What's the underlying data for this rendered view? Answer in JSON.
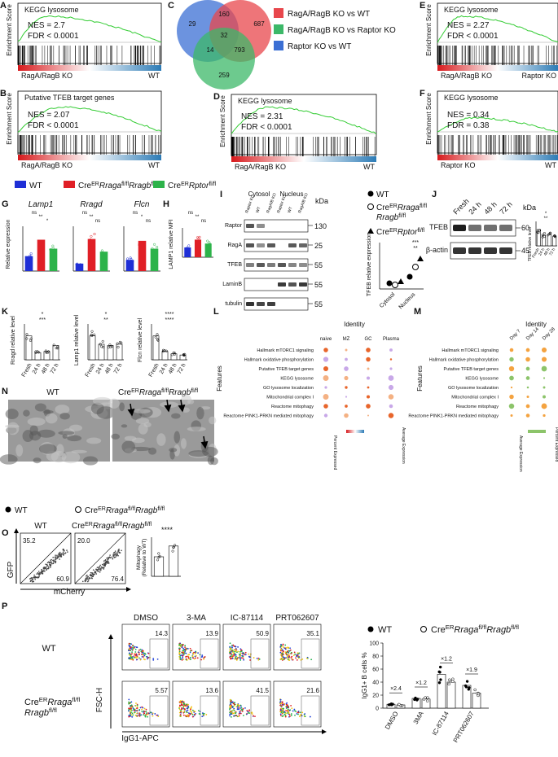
{
  "panels": {
    "A": {
      "letter": "A",
      "title": "KEGG lysosome",
      "y_label": "Enrichment Score",
      "nes": "NES = 2.7",
      "fdr": "FDR < 0.0001",
      "left": "RagA/RagB KO",
      "right": "WT"
    },
    "B": {
      "letter": "B",
      "title": "Putative TFEB target genes",
      "y_label": "Enrichment Score",
      "nes": "NES = 2.07",
      "fdr": "FDR < 0.0001",
      "left": "RagA/RagB KO",
      "right": "WT"
    },
    "C": {
      "letter": "C",
      "venn": [
        "29",
        "160",
        "687",
        "32",
        "14",
        "793",
        "259"
      ],
      "legend": [
        "RagA/RagB KO vs WT",
        "RagA/RagB KO vs Raptor KO",
        "Raptor KO vs WT"
      ]
    },
    "D": {
      "letter": "D",
      "title": "KEGG lysosome",
      "y_label": "Enrichment Score",
      "nes": "NES = 2.31",
      "fdr": "FDR < 0.0001",
      "left": "RagA/RagB KO",
      "right": "WT"
    },
    "E": {
      "letter": "E",
      "title": "KEGG lysosome",
      "y_label": "Enrichment Score",
      "nes": "NES = 2.27",
      "fdr": "FDR < 0.0001",
      "left": "RagA/RagB KO",
      "right": "Raptor KO"
    },
    "F": {
      "letter": "F",
      "title": "KEGG lysosome",
      "y_label": "Enrichment Score",
      "nes": "NES = 0.34",
      "fdr": "FDR = 0.38",
      "left": "Raptor KO",
      "right": "WT"
    },
    "genotypes": {
      "wt": "WT",
      "raga": [
        "Cre",
        "ER",
        "Rraga",
        "fl/fl",
        "Rragb",
        "fl/fl"
      ],
      "raptor": [
        "Cre",
        "ER",
        "Rptor",
        "fl/fl"
      ]
    },
    "G": {
      "letter": "G",
      "y_label": "Relative expression",
      "charts": [
        {
          "gene": "Lamp1",
          "values": [
            1,
            2.1,
            1.5
          ],
          "ylim": [
            0,
            3
          ],
          "sig": [
            "ns",
            "**",
            "*"
          ]
        },
        {
          "gene": "Rragd",
          "values": [
            1,
            4.3,
            2.6
          ],
          "ylim": [
            0,
            6
          ],
          "sig": [
            "ns",
            "**",
            "ns"
          ]
        },
        {
          "gene": "Flcn",
          "values": [
            1,
            2.7,
            2.0
          ],
          "ylim": [
            0,
            4
          ],
          "sig": [
            "ns",
            "*",
            "ns"
          ]
        }
      ]
    },
    "H": {
      "letter": "H",
      "y_label": "LAMP1 relative MFI",
      "values": [
        1,
        1.8,
        1.4
      ],
      "ylim": [
        0,
        3
      ],
      "sig": [
        "ns",
        "**",
        "ns"
      ]
    },
    "I": {
      "letter": "I",
      "fractions": [
        "Cytosol",
        "Nucleus"
      ],
      "lanes": [
        "Raptor KO",
        "WT",
        "RagA/B KO",
        "Raptor KO",
        "WT",
        "RagA/B KO"
      ],
      "proteins": [
        "Raptor",
        "RagA",
        "TFEB",
        "LaminB",
        "tubulin"
      ],
      "kda_label": "kDa",
      "kda": [
        "130",
        "25",
        "55",
        "55",
        "55"
      ],
      "quant": {
        "y_label": "TFEB relative expression",
        "x": [
          "Cytosol",
          "Nucleus"
        ],
        "sig": [
          "***",
          "**"
        ]
      }
    },
    "J": {
      "letter": "J",
      "times": [
        "Fresh",
        "24 h",
        "48 h",
        "72 h"
      ],
      "proteins": [
        "TFEB",
        "β-actin"
      ],
      "kda_label": "kDa",
      "kda": [
        "60",
        "45"
      ],
      "y_label": "TFEB relative level",
      "values": [
        1,
        0.65,
        0.7,
        0.6
      ],
      "ylim": [
        0,
        1.5
      ],
      "sig": [
        "*",
        "**"
      ]
    },
    "K": {
      "letter": "K",
      "charts": [
        {
          "y_label": "Rragd relative level",
          "values": [
            1,
            0.3,
            0.35,
            0.6
          ],
          "ylim": [
            0,
            1.5
          ],
          "sig": [
            "*",
            "***"
          ]
        },
        {
          "y_label": "Lamp1 relative level",
          "values": [
            1,
            0.65,
            0.6,
            0.65
          ],
          "ylim": [
            0,
            1.5
          ],
          "sig": [
            "*",
            "**"
          ]
        },
        {
          "y_label": "Flcn relative level",
          "values": [
            1,
            0.35,
            0.25,
            0.2
          ],
          "ylim": [
            0,
            1.5
          ],
          "sig": [
            "****",
            "****"
          ]
        }
      ]
    },
    "L": {
      "letter": "L",
      "title": "Identity",
      "groups": [
        "naive",
        "MZ",
        "GC",
        "Plasma"
      ],
      "y_label": "Features",
      "legend": [
        "Percent Expressed",
        "Average Expression"
      ]
    },
    "M": {
      "letter": "M",
      "title": "Identity",
      "groups": [
        "Day 7",
        "Day 14",
        "Day 28"
      ],
      "y_label": "Features",
      "legend": [
        "Average Expression",
        "Percent Expressed"
      ]
    },
    "features": [
      "Hallmark mTORC1 signaling",
      "Hallmark oxidative phosphorylation",
      "Putative TFEB target genes",
      "KEGG lysosome",
      "GO lysosome localization",
      "Mitochondrial complex I",
      "Reactome mitophagy",
      "Reactome PINK1-PRKN mediated mitophagy"
    ],
    "N": {
      "letter": "N"
    },
    "O": {
      "letter": "O",
      "quadrants": [
        [
          "35.2",
          "60.9"
        ],
        [
          "20.0",
          "76.4"
        ]
      ],
      "y_axis": "GFP",
      "x_axis": "mCherry",
      "y_label": [
        "Mitophagy",
        "(Relative to WT)"
      ],
      "sig": "****",
      "values": [
        1,
        1.55
      ],
      "ylim": [
        0,
        2
      ]
    },
    "P": {
      "letter": "P",
      "conditions": [
        "DMSO",
        "3-MA",
        "IC-87114",
        "PRT062607"
      ],
      "gates": [
        [
          "14.3",
          "13.9",
          "50.9",
          "35.1"
        ],
        [
          "5.57",
          "13.6",
          "41.5",
          "21.6"
        ]
      ],
      "y_axis": "FSC-H",
      "x_axis": "IgG1-APC",
      "bar": {
        "y_label": "IgG1+ B cells %",
        "x": [
          "DMSO",
          "3MA",
          "IC-87114",
          "PRT062607"
        ],
        "folds": [
          "×2.4",
          "×1.2",
          "×1.2",
          "×1.9"
        ],
        "values": [
          [
            6,
            15,
            52,
            35
          ],
          [
            5,
            14,
            40,
            23
          ]
        ],
        "ylim": [
          0,
          100
        ],
        "yticks": [
          0,
          20,
          40,
          60,
          80,
          100
        ]
      }
    }
  }
}
